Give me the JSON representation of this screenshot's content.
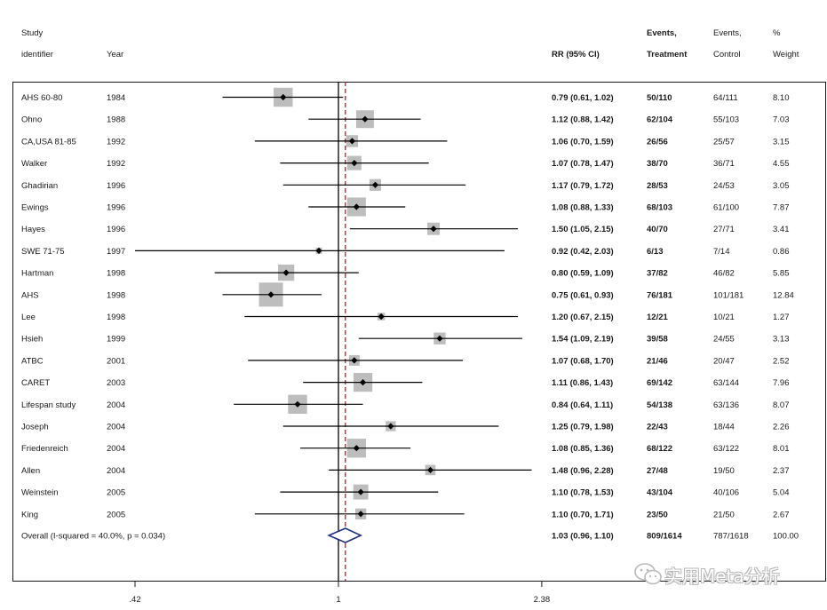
{
  "chart_data": {
    "type": "forest",
    "headers": {
      "study_1": "Study",
      "study_2": "identifier",
      "year": "Year",
      "rr": "RR (95% CI)",
      "events_t_1": "Events,",
      "events_t_2": "Treatment",
      "events_c_1": "Events,",
      "events_c_2": "Control",
      "weight_1": "%",
      "weight_2": "Weight"
    },
    "x_scale": "log",
    "xlim": [
      0.37,
      2.8
    ],
    "ticks": [
      {
        "value": 0.42,
        "label": ".42"
      },
      {
        "value": 1,
        "label": "1"
      },
      {
        "value": 2.38,
        "label": "2.38"
      }
    ],
    "null_line": 1,
    "overall_line": 1.03,
    "studies": [
      {
        "study": "AHS 60-80",
        "year": "1984",
        "rr": 0.79,
        "lo": 0.61,
        "hi": 1.02,
        "ci_text": "0.79 (0.61, 1.02)",
        "events_t": "50/110",
        "events_c": "64/111",
        "weight": 8.1,
        "weight_text": "8.10"
      },
      {
        "study": "Ohno",
        "year": "1988",
        "rr": 1.12,
        "lo": 0.88,
        "hi": 1.42,
        "ci_text": "1.12 (0.88, 1.42)",
        "events_t": "62/104",
        "events_c": "55/103",
        "weight": 7.03,
        "weight_text": "7.03"
      },
      {
        "study": "CA,USA 81-85",
        "year": "1992",
        "rr": 1.06,
        "lo": 0.7,
        "hi": 1.59,
        "ci_text": "1.06 (0.70, 1.59)",
        "events_t": "26/56",
        "events_c": "25/57",
        "weight": 3.15,
        "weight_text": "3.15"
      },
      {
        "study": "Walker",
        "year": "1992",
        "rr": 1.07,
        "lo": 0.78,
        "hi": 1.47,
        "ci_text": "1.07 (0.78, 1.47)",
        "events_t": "38/70",
        "events_c": "36/71",
        "weight": 4.55,
        "weight_text": "4.55"
      },
      {
        "study": "Ghadirian",
        "year": "1996",
        "rr": 1.17,
        "lo": 0.79,
        "hi": 1.72,
        "ci_text": "1.17 (0.79, 1.72)",
        "events_t": "28/53",
        "events_c": "24/53",
        "weight": 3.05,
        "weight_text": "3.05"
      },
      {
        "study": "Ewings",
        "year": "1996",
        "rr": 1.08,
        "lo": 0.88,
        "hi": 1.33,
        "ci_text": "1.08 (0.88, 1.33)",
        "events_t": "68/103",
        "events_c": "61/100",
        "weight": 7.87,
        "weight_text": "7.87"
      },
      {
        "study": "Hayes",
        "year": "1996",
        "rr": 1.5,
        "lo": 1.05,
        "hi": 2.15,
        "ci_text": "1.50 (1.05, 2.15)",
        "events_t": "40/70",
        "events_c": "27/71",
        "weight": 3.41,
        "weight_text": "3.41"
      },
      {
        "study": "SWE 71-75",
        "year": "1997",
        "rr": 0.92,
        "lo": 0.42,
        "hi": 2.03,
        "ci_text": "0.92 (0.42, 2.03)",
        "events_t": "6/13",
        "events_c": "7/14",
        "weight": 0.86,
        "weight_text": "0.86"
      },
      {
        "study": "Hartman",
        "year": "1998",
        "rr": 0.8,
        "lo": 0.59,
        "hi": 1.09,
        "ci_text": "0.80 (0.59, 1.09)",
        "events_t": "37/82",
        "events_c": "46/82",
        "weight": 5.85,
        "weight_text": "5.85"
      },
      {
        "study": "AHS",
        "year": "1998",
        "rr": 0.75,
        "lo": 0.61,
        "hi": 0.93,
        "ci_text": "0.75 (0.61, 0.93)",
        "events_t": "76/181",
        "events_c": "101/181",
        "weight": 12.84,
        "weight_text": "12.84"
      },
      {
        "study": "Lee",
        "year": "1998",
        "rr": 1.2,
        "lo": 0.67,
        "hi": 2.15,
        "ci_text": "1.20 (0.67, 2.15)",
        "events_t": "12/21",
        "events_c": "10/21",
        "weight": 1.27,
        "weight_text": "1.27"
      },
      {
        "study": "Hsieh",
        "year": "1999",
        "rr": 1.54,
        "lo": 1.09,
        "hi": 2.19,
        "ci_text": "1.54 (1.09, 2.19)",
        "events_t": "39/58",
        "events_c": "24/55",
        "weight": 3.13,
        "weight_text": "3.13"
      },
      {
        "study": "ATBC",
        "year": "2001",
        "rr": 1.07,
        "lo": 0.68,
        "hi": 1.7,
        "ci_text": "1.07 (0.68, 1.70)",
        "events_t": "21/46",
        "events_c": "20/47",
        "weight": 2.52,
        "weight_text": "2.52"
      },
      {
        "study": "CARET",
        "year": "2003",
        "rr": 1.11,
        "lo": 0.86,
        "hi": 1.43,
        "ci_text": "1.11 (0.86, 1.43)",
        "events_t": "69/142",
        "events_c": "63/144",
        "weight": 7.96,
        "weight_text": "7.96"
      },
      {
        "study": "Lifespan study",
        "year": "2004",
        "rr": 0.84,
        "lo": 0.64,
        "hi": 1.11,
        "ci_text": "0.84 (0.64, 1.11)",
        "events_t": "54/138",
        "events_c": "63/136",
        "weight": 8.07,
        "weight_text": "8.07"
      },
      {
        "study": "Joseph",
        "year": "2004",
        "rr": 1.25,
        "lo": 0.79,
        "hi": 1.98,
        "ci_text": "1.25 (0.79, 1.98)",
        "events_t": "22/43",
        "events_c": "18/44",
        "weight": 2.26,
        "weight_text": "2.26"
      },
      {
        "study": "Friedenreich",
        "year": "2004",
        "rr": 1.08,
        "lo": 0.85,
        "hi": 1.36,
        "ci_text": "1.08 (0.85, 1.36)",
        "events_t": "68/122",
        "events_c": "63/122",
        "weight": 8.01,
        "weight_text": "8.01"
      },
      {
        "study": "Allen",
        "year": "2004",
        "rr": 1.48,
        "lo": 0.96,
        "hi": 2.28,
        "ci_text": "1.48 (0.96, 2.28)",
        "events_t": "27/48",
        "events_c": "19/50",
        "weight": 2.37,
        "weight_text": "2.37"
      },
      {
        "study": "Weinstein",
        "year": "2005",
        "rr": 1.1,
        "lo": 0.78,
        "hi": 1.53,
        "ci_text": "1.10 (0.78, 1.53)",
        "events_t": "43/104",
        "events_c": "40/106",
        "weight": 5.04,
        "weight_text": "5.04"
      },
      {
        "study": "King",
        "year": "2005",
        "rr": 1.1,
        "lo": 0.7,
        "hi": 1.71,
        "ci_text": "1.10 (0.70, 1.71)",
        "events_t": "23/50",
        "events_c": "21/50",
        "weight": 2.67,
        "weight_text": "2.67"
      }
    ],
    "overall": {
      "label": "Overall  (I-squared = 40.0%, p = 0.034)",
      "rr": 1.03,
      "lo": 0.96,
      "hi": 1.1,
      "ci_text": "1.03 (0.96, 1.10)",
      "events_t": "809/1614",
      "events_c": "787/1618",
      "weight_text": "100.00"
    },
    "colors": {
      "box": "#bdbdbd",
      "marker": "#000000",
      "ci_line": "#000000",
      "null_line": "#000000",
      "overall_line": "#8b1a1a",
      "diamond": "#1f2f7a",
      "frame": "#1a1a1a"
    }
  },
  "watermark": {
    "text": "实用Meta分析",
    "icon": "wechat-icon"
  }
}
